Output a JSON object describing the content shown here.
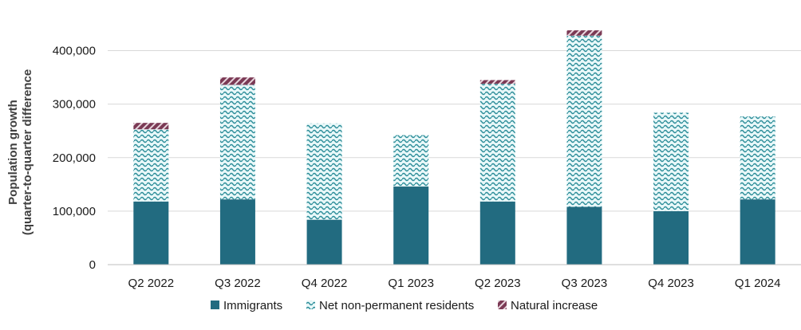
{
  "chart_data": {
    "type": "bar",
    "stacked": true,
    "categories": [
      "Q2 2022",
      "Q3 2022",
      "Q4 2022",
      "Q1 2023",
      "Q2 2023",
      "Q3 2023",
      "Q4 2023",
      "Q1 2024"
    ],
    "series": [
      {
        "name": "Immigrants",
        "values": [
          118000,
          122000,
          84000,
          146000,
          118000,
          108000,
          100000,
          122000
        ],
        "color": "#226b80"
      },
      {
        "name": "Net non-permanent residents",
        "values": [
          135000,
          214000,
          180000,
          96000,
          220000,
          320000,
          184000,
          155000
        ],
        "color": "#7fd6dd"
      },
      {
        "name": "Natural increase",
        "values": [
          12000,
          14000,
          0,
          0,
          7000,
          10000,
          0,
          0
        ],
        "color": "#7b3a55"
      }
    ],
    "ylabel_line1": "Population growth",
    "ylabel_line2": "(quarter-to-quarter difference",
    "yticks": [
      "0",
      "100,000",
      "200,000",
      "300,000",
      "400,000"
    ],
    "ytick_values": [
      0,
      100000,
      200000,
      300000,
      400000
    ],
    "ylim": [
      0,
      450000
    ],
    "grid": true,
    "legend_position": "bottom"
  }
}
